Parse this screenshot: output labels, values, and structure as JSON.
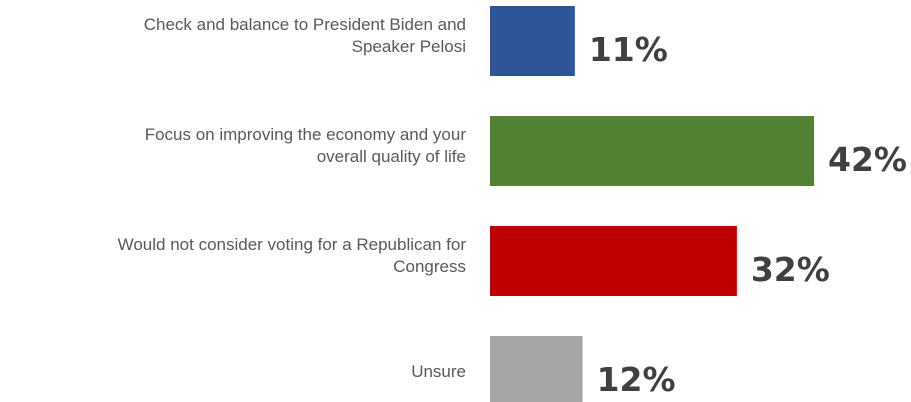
{
  "chart_data": {
    "type": "bar",
    "orientation": "horizontal",
    "categories": [
      [
        "Check and balance to President Biden and",
        "Speaker Pelosi"
      ],
      [
        "Focus on improving the economy and your",
        "overall quality of life"
      ],
      [
        "Would not consider voting for a Republican for",
        "Congress"
      ],
      [
        "Unsure"
      ]
    ],
    "values": [
      11,
      42,
      32,
      12
    ],
    "value_labels": [
      "11%",
      "42%",
      "32%",
      "12%"
    ],
    "colors": [
      "#2e5597",
      "#548235",
      "#c00000",
      "#a6a6a6"
    ],
    "xlim": [
      0,
      42
    ],
    "grid": false,
    "legend": "none"
  }
}
